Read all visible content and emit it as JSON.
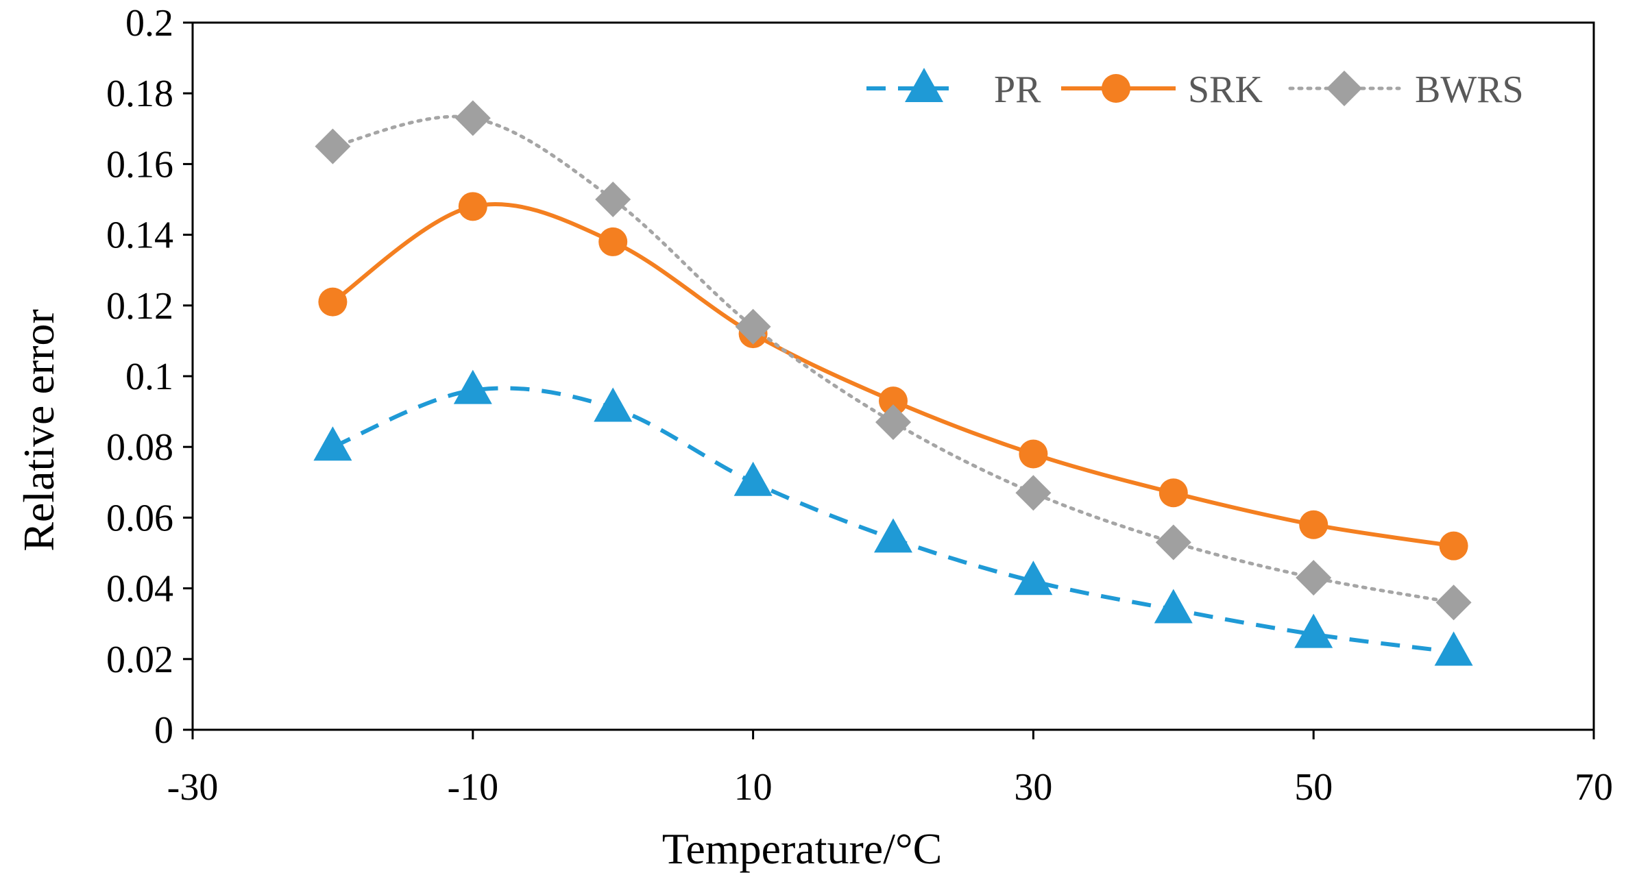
{
  "chart_data": {
    "type": "line",
    "title": "",
    "xlabel": "Temperature/°C",
    "ylabel": "Relative error",
    "xlim": [
      -30,
      70
    ],
    "ylim": [
      0,
      0.2
    ],
    "xticks": [
      "-30",
      "-10",
      "10",
      "30",
      "50",
      "70"
    ],
    "xtick_values": [
      -30,
      -10,
      10,
      30,
      50,
      70
    ],
    "yticks": [
      "0",
      "0.02",
      "0.04",
      "0.06",
      "0.08",
      "0.1",
      "0.12",
      "0.14",
      "0.16",
      "0.18",
      "0.2"
    ],
    "ytick_values": [
      0,
      0.02,
      0.04,
      0.06,
      0.08,
      0.1,
      0.12,
      0.14,
      0.16,
      0.18,
      0.2
    ],
    "grid": false,
    "legend_position": "top-right",
    "x": [
      -20,
      -10,
      0,
      10,
      20,
      30,
      40,
      50,
      60
    ],
    "series": [
      {
        "name": "PR",
        "color": "#1f9ad6",
        "style": "dashed",
        "marker": "triangle",
        "smooth": true,
        "values": [
          0.08,
          0.096,
          0.091,
          0.07,
          0.054,
          0.042,
          0.034,
          0.027,
          0.022
        ]
      },
      {
        "name": "SRK",
        "color": "#f47f20",
        "style": "solid",
        "marker": "circle",
        "smooth": true,
        "values": [
          0.121,
          0.148,
          0.138,
          0.112,
          0.093,
          0.078,
          0.067,
          0.058,
          0.052
        ]
      },
      {
        "name": "BWRS",
        "color": "#a5a5a5",
        "style": "dotted",
        "marker": "diamond",
        "smooth": true,
        "values": [
          0.165,
          0.173,
          0.15,
          0.114,
          0.087,
          0.067,
          0.053,
          0.043,
          0.036
        ]
      }
    ]
  }
}
